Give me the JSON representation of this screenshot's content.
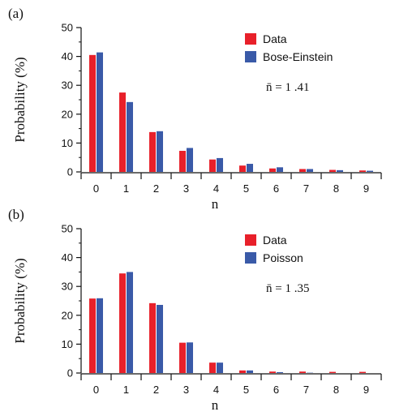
{
  "colors": {
    "data": "#e8202a",
    "model": "#3a5aa8",
    "axis": "#111111"
  },
  "chart_data": [
    {
      "type": "bar",
      "panel_label": "(a)",
      "xlabel": "n",
      "ylabel": "Probability (%)",
      "ylim": [
        0,
        50
      ],
      "yticks": [
        "0",
        "10",
        "20",
        "30",
        "40",
        "50"
      ],
      "categories": [
        "0",
        "1",
        "2",
        "3",
        "4",
        "5",
        "6",
        "7",
        "8",
        "9"
      ],
      "series": [
        {
          "name": "Data",
          "values": [
            40.5,
            27.5,
            13.8,
            7.3,
            4.3,
            2.2,
            1.2,
            1.0,
            0.7,
            0.5
          ]
        },
        {
          "name": "Bose-Einstein",
          "values": [
            41.4,
            24.2,
            14.1,
            8.3,
            4.8,
            2.8,
            1.6,
            1.0,
            0.6,
            0.4
          ]
        }
      ],
      "annotation": "n̄ = 1 .41",
      "legend_position": "top-right",
      "grid": false
    },
    {
      "type": "bar",
      "panel_label": "(b)",
      "xlabel": "n",
      "ylabel": "Probability (%)",
      "ylim": [
        0,
        50
      ],
      "yticks": [
        "0",
        "10",
        "20",
        "30",
        "40",
        "50"
      ],
      "categories": [
        "0",
        "1",
        "2",
        "3",
        "4",
        "5",
        "6",
        "7",
        "8",
        "9"
      ],
      "series": [
        {
          "name": "Data",
          "values": [
            25.8,
            34.5,
            24.2,
            10.5,
            3.6,
            0.9,
            0.5,
            0.5,
            0.4,
            0.4
          ]
        },
        {
          "name": "Poisson",
          "values": [
            25.9,
            35.0,
            23.6,
            10.6,
            3.6,
            0.9,
            0.3,
            0.1,
            0.0,
            0.0
          ]
        }
      ],
      "annotation": "n̄ = 1 .35",
      "legend_position": "top-right",
      "grid": false
    }
  ]
}
